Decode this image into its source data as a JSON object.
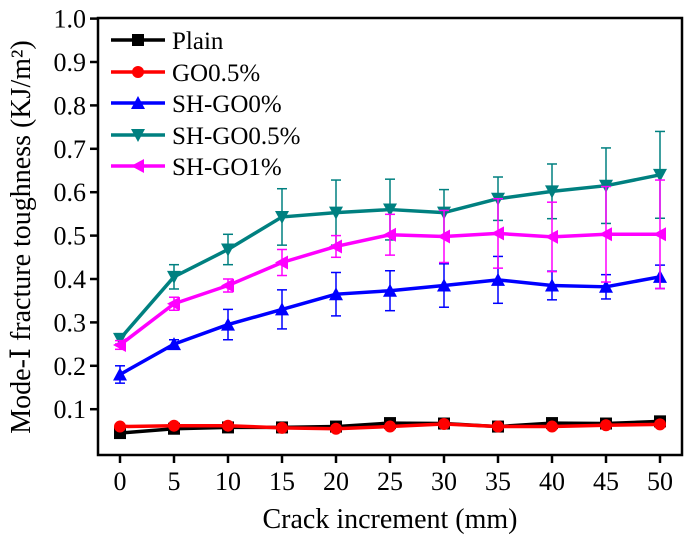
{
  "chart_data": {
    "type": "line",
    "xlabel": "Crack increment (mm)",
    "ylabel": "Mode-Ⅰ fracture toughness (KJ/m²)",
    "xlim": [
      0,
      50
    ],
    "ylim": [
      0.0,
      1.0
    ],
    "x": [
      0,
      5,
      10,
      15,
      20,
      25,
      30,
      35,
      40,
      45,
      50
    ],
    "x_ticks": [
      "0",
      "5",
      "10",
      "15",
      "20",
      "25",
      "30",
      "35",
      "40",
      "45",
      "50"
    ],
    "y_ticks": [
      "0.1",
      "0.2",
      "0.3",
      "0.4",
      "0.5",
      "0.6",
      "0.7",
      "0.8",
      "0.9",
      "1.0"
    ],
    "grid": false,
    "legend_position": "top-left",
    "series": [
      {
        "name": "Plain",
        "color": "#000000",
        "marker": "square",
        "values": [
          0.045,
          0.055,
          0.058,
          0.058,
          0.06,
          0.068,
          0.067,
          0.06,
          0.068,
          0.067,
          0.072
        ],
        "errors": [
          0.005,
          0.004,
          0.004,
          0.003,
          0.004,
          0.004,
          0.004,
          0.003,
          0.004,
          0.004,
          0.004
        ]
      },
      {
        "name": "GO0.5%",
        "color": "#ff0000",
        "marker": "circle",
        "values": [
          0.06,
          0.062,
          0.062,
          0.057,
          0.055,
          0.06,
          0.066,
          0.06,
          0.06,
          0.063,
          0.065
        ],
        "errors": [
          0.003,
          0.003,
          0.004,
          0.003,
          0.005,
          0.004,
          0.004,
          0.003,
          0.005,
          0.004,
          0.004
        ]
      },
      {
        "name": "SH-GO0%",
        "color": "#0000ff",
        "marker": "triangle-up",
        "values": [
          0.18,
          0.25,
          0.295,
          0.33,
          0.365,
          0.373,
          0.385,
          0.398,
          0.385,
          0.382,
          0.405
        ],
        "errors": [
          0.02,
          0.01,
          0.035,
          0.045,
          0.05,
          0.046,
          0.05,
          0.054,
          0.033,
          0.028,
          0.027
        ]
      },
      {
        "name": "SH-GO0.5%",
        "color": "#008080",
        "marker": "triangle-down",
        "values": [
          0.262,
          0.405,
          0.468,
          0.543,
          0.553,
          0.56,
          0.553,
          0.585,
          0.602,
          0.615,
          0.64
        ],
        "errors": [
          0.012,
          0.028,
          0.035,
          0.065,
          0.075,
          0.07,
          0.053,
          0.05,
          0.063,
          0.087,
          0.1
        ]
      },
      {
        "name": "SH-GO1%",
        "color": "#ff00ff",
        "marker": "triangle-left",
        "values": [
          0.248,
          0.343,
          0.385,
          0.438,
          0.475,
          0.502,
          0.498,
          0.505,
          0.497,
          0.503,
          0.503
        ],
        "errors": [
          0.01,
          0.015,
          0.015,
          0.03,
          0.025,
          0.047,
          0.06,
          0.08,
          0.08,
          0.11,
          0.125
        ]
      }
    ]
  }
}
